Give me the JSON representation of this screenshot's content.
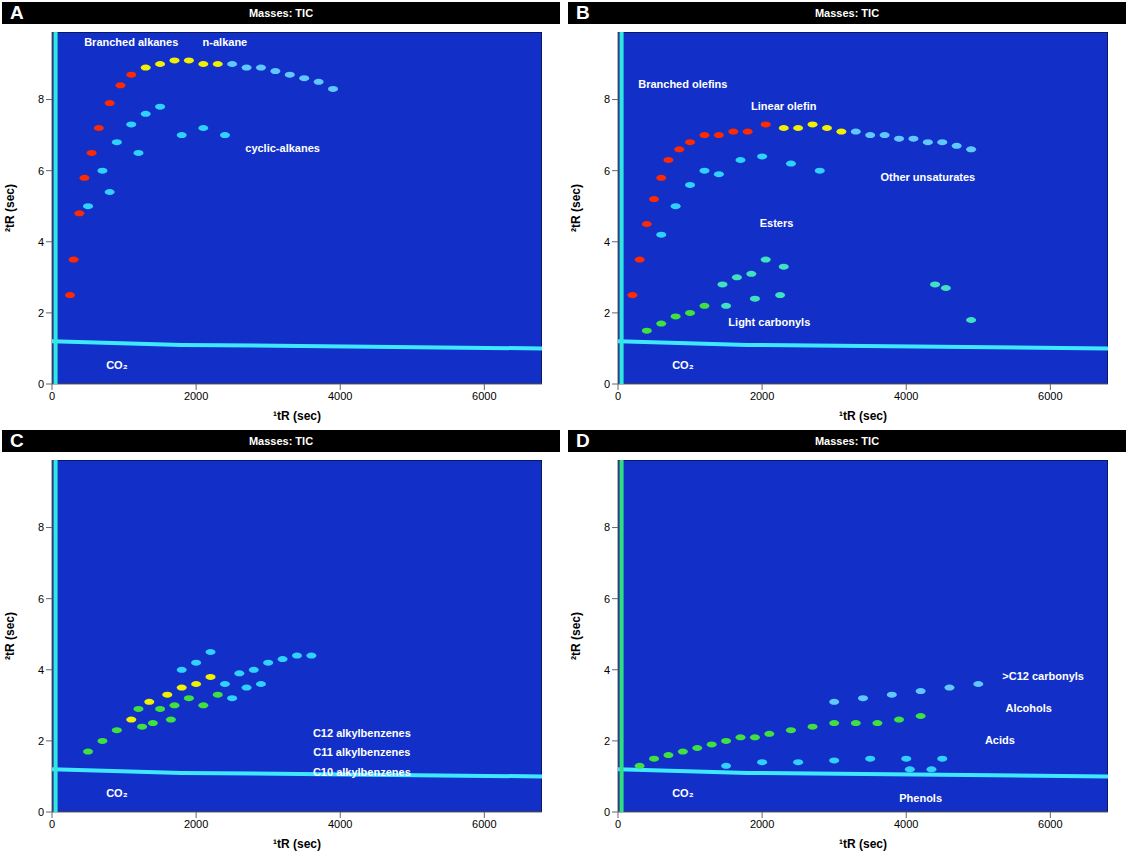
{
  "chart_data": [
    {
      "type": "scatter",
      "panel": "A",
      "title": "Masses: TIC",
      "x_label": "¹tR (sec)",
      "y_label": "²tR (sec)",
      "xlim": [
        0,
        6800
      ],
      "ylim": [
        0,
        9.9
      ],
      "xticks": [
        0,
        2000,
        4000,
        6000
      ],
      "yticks": [
        0,
        2,
        4,
        6,
        8
      ],
      "series": [
        {
          "type": "line",
          "color": "#40e8ff",
          "x": [
            0,
            1800,
            6800
          ],
          "y": [
            1.2,
            1.1,
            1.0
          ]
        },
        {
          "type": "line",
          "color": "#30e8e0",
          "x": [
            50,
            50
          ],
          "y": [
            0,
            9.9
          ]
        },
        {
          "color": "#ff2a00",
          "x": [
            250,
            300,
            380,
            450,
            550,
            650,
            800,
            950,
            1100
          ],
          "y": [
            2.5,
            3.5,
            4.8,
            5.8,
            6.5,
            7.2,
            7.9,
            8.4,
            8.7
          ]
        },
        {
          "color": "#f0f000",
          "x": [
            1300,
            1500,
            1700,
            1900,
            2100,
            2300
          ],
          "y": [
            8.9,
            9.0,
            9.1,
            9.1,
            9.0,
            9.0
          ]
        },
        {
          "color": "#60c8ff",
          "x": [
            2500,
            2700,
            2900,
            3100,
            3300,
            3500,
            3700,
            3900
          ],
          "y": [
            9.0,
            8.9,
            8.9,
            8.8,
            8.7,
            8.6,
            8.5,
            8.3
          ]
        },
        {
          "color": "#30d0ff",
          "x": [
            500,
            700,
            900,
            1100,
            1300,
            1500,
            1800,
            2100,
            2400,
            800,
            1200
          ],
          "y": [
            5.0,
            6.0,
            6.8,
            7.3,
            7.6,
            7.8,
            7.0,
            7.2,
            7.0,
            5.4,
            6.5
          ]
        }
      ],
      "annotations": [
        {
          "text": "Branched alkanes",
          "x": 1100,
          "y": 9.6
        },
        {
          "text": "n-alkane",
          "x": 2400,
          "y": 9.6
        },
        {
          "text": "cyclic-alkanes",
          "x": 3200,
          "y": 6.6
        },
        {
          "text": "CO₂",
          "x": 900,
          "y": 0.5
        }
      ]
    },
    {
      "type": "scatter",
      "panel": "B",
      "title": "Masses: TIC",
      "x_label": "¹tR (sec)",
      "y_label": "²tR (sec)",
      "xlim": [
        0,
        6800
      ],
      "ylim": [
        0,
        9.9
      ],
      "xticks": [
        0,
        2000,
        4000,
        6000
      ],
      "yticks": [
        0,
        2,
        4,
        6,
        8
      ],
      "series": [
        {
          "type": "line",
          "color": "#40e8ff",
          "x": [
            0,
            1800,
            6800
          ],
          "y": [
            1.2,
            1.1,
            1.0
          ]
        },
        {
          "type": "line",
          "color": "#30e8e0",
          "x": [
            50,
            50
          ],
          "y": [
            0,
            9.9
          ]
        },
        {
          "color": "#ff2a00",
          "x": [
            200,
            300,
            400,
            500,
            600,
            700,
            850,
            1000,
            1200,
            1400,
            1600,
            1800,
            2050
          ],
          "y": [
            2.5,
            3.5,
            4.5,
            5.2,
            5.8,
            6.3,
            6.6,
            6.8,
            7.0,
            7.0,
            7.1,
            7.1,
            7.3
          ]
        },
        {
          "color": "#f0f000",
          "x": [
            2300,
            2500,
            2700,
            2900,
            3100
          ],
          "y": [
            7.2,
            7.2,
            7.3,
            7.2,
            7.1
          ]
        },
        {
          "color": "#60c8ff",
          "x": [
            3300,
            3500,
            3700,
            3900,
            4100,
            4300,
            4500,
            4700,
            4900
          ],
          "y": [
            7.1,
            7.0,
            7.0,
            6.9,
            6.9,
            6.8,
            6.8,
            6.7,
            6.6
          ]
        },
        {
          "color": "#30d0ff",
          "x": [
            600,
            800,
            1000,
            1200,
            1400,
            1700,
            2000,
            2400,
            2800
          ],
          "y": [
            4.2,
            5.0,
            5.6,
            6.0,
            5.9,
            6.3,
            6.4,
            6.2,
            6.0
          ]
        },
        {
          "color": "#40e0c0",
          "x": [
            1450,
            1650,
            1850,
            2050,
            2300,
            1500,
            1900,
            2250,
            4400,
            4550,
            4900
          ],
          "y": [
            2.8,
            3.0,
            3.1,
            3.5,
            3.3,
            2.2,
            2.4,
            2.5,
            2.8,
            2.7,
            1.8
          ]
        },
        {
          "color": "#40e040",
          "x": [
            400,
            600,
            800,
            1000,
            1200
          ],
          "y": [
            1.5,
            1.7,
            1.9,
            2.0,
            2.2
          ]
        }
      ],
      "annotations": [
        {
          "text": "Branched olefins",
          "x": 900,
          "y": 8.4
        },
        {
          "text": "Linear olefin",
          "x": 2300,
          "y": 7.8
        },
        {
          "text": "Other unsaturates",
          "x": 4300,
          "y": 5.8
        },
        {
          "text": "Esters",
          "x": 2200,
          "y": 4.5
        },
        {
          "text": "Light carbonyls",
          "x": 2100,
          "y": 1.7
        },
        {
          "text": "CO₂",
          "x": 900,
          "y": 0.5
        }
      ]
    },
    {
      "type": "scatter",
      "panel": "C",
      "title": "Masses: TIC",
      "x_label": "¹tR (sec)",
      "y_label": "²tR (sec)",
      "xlim": [
        0,
        6800
      ],
      "ylim": [
        0,
        9.9
      ],
      "xticks": [
        0,
        2000,
        4000,
        6000
      ],
      "yticks": [
        0,
        2,
        4,
        6,
        8
      ],
      "series": [
        {
          "type": "line",
          "color": "#40e8ff",
          "x": [
            0,
            1800,
            6800
          ],
          "y": [
            1.2,
            1.1,
            1.0
          ]
        },
        {
          "type": "line",
          "color": "#30e8e0",
          "x": [
            50,
            50
          ],
          "y": [
            0,
            9.9
          ]
        },
        {
          "color": "#f0f000",
          "x": [
            1100,
            1350,
            1600,
            1800,
            2000,
            2200
          ],
          "y": [
            2.6,
            3.1,
            3.3,
            3.5,
            3.6,
            3.8
          ]
        },
        {
          "color": "#40e040",
          "x": [
            500,
            700,
            900,
            1200,
            1500,
            1700,
            1900,
            2100,
            2300,
            1400,
            1650,
            1250
          ],
          "y": [
            1.7,
            2.0,
            2.3,
            2.9,
            2.9,
            3.0,
            3.2,
            3.0,
            3.3,
            2.5,
            2.6,
            2.4
          ]
        },
        {
          "color": "#30d0ff",
          "x": [
            2400,
            2600,
            2800,
            3000,
            3200,
            3400,
            3600,
            2500,
            2700,
            2900,
            2000,
            2200,
            1800
          ],
          "y": [
            3.6,
            3.9,
            4.0,
            4.2,
            4.3,
            4.4,
            4.4,
            3.2,
            3.5,
            3.6,
            4.2,
            4.5,
            4.0
          ]
        }
      ],
      "annotations": [
        {
          "text": "C12 alkylbenzenes",
          "x": 4300,
          "y": 2.2
        },
        {
          "text": "C11 alkylbenzenes",
          "x": 4300,
          "y": 1.65
        },
        {
          "text": "C10 alkylbenzenes",
          "x": 4300,
          "y": 1.1
        },
        {
          "text": "CO₂",
          "x": 900,
          "y": 0.5
        }
      ]
    },
    {
      "type": "scatter",
      "panel": "D",
      "title": "Masses: TIC",
      "x_label": "¹tR (sec)",
      "y_label": "²tR (sec)",
      "xlim": [
        0,
        6800
      ],
      "ylim": [
        0,
        9.9
      ],
      "xticks": [
        0,
        2000,
        4000,
        6000
      ],
      "yticks": [
        0,
        2,
        4,
        6,
        8
      ],
      "series": [
        {
          "type": "line",
          "color": "#40e8ff",
          "x": [
            0,
            1800,
            6800
          ],
          "y": [
            1.2,
            1.1,
            1.0
          ]
        },
        {
          "type": "line",
          "color": "#30e080",
          "x": [
            50,
            50
          ],
          "y": [
            0,
            9.9
          ]
        },
        {
          "color": "#40e040",
          "x": [
            300,
            500,
            700,
            900,
            1100,
            1300,
            1500,
            1700,
            1900,
            2100,
            2400,
            2700,
            3000,
            3300,
            3600,
            3900,
            4200
          ],
          "y": [
            1.3,
            1.5,
            1.6,
            1.7,
            1.8,
            1.9,
            2.0,
            2.1,
            2.1,
            2.2,
            2.3,
            2.4,
            2.5,
            2.5,
            2.5,
            2.6,
            2.7
          ]
        },
        {
          "color": "#30d0ff",
          "x": [
            1500,
            2000,
            2500,
            3000,
            3500,
            4000,
            4500,
            4050,
            4350
          ],
          "y": [
            1.3,
            1.4,
            1.4,
            1.45,
            1.5,
            1.5,
            1.5,
            1.2,
            1.2
          ]
        },
        {
          "color": "#60c8ff",
          "x": [
            3000,
            3400,
            3800,
            4200,
            4600,
            5000
          ],
          "y": [
            3.1,
            3.2,
            3.3,
            3.4,
            3.5,
            3.6
          ]
        }
      ],
      "annotations": [
        {
          "text": ">C12 carbonyls",
          "x": 5900,
          "y": 3.8
        },
        {
          "text": "Alcohols",
          "x": 5700,
          "y": 2.9
        },
        {
          "text": "Acids",
          "x": 5300,
          "y": 2.0
        },
        {
          "text": "Phenols",
          "x": 4200,
          "y": 0.35
        },
        {
          "text": "CO₂",
          "x": 900,
          "y": 0.5
        }
      ]
    }
  ]
}
